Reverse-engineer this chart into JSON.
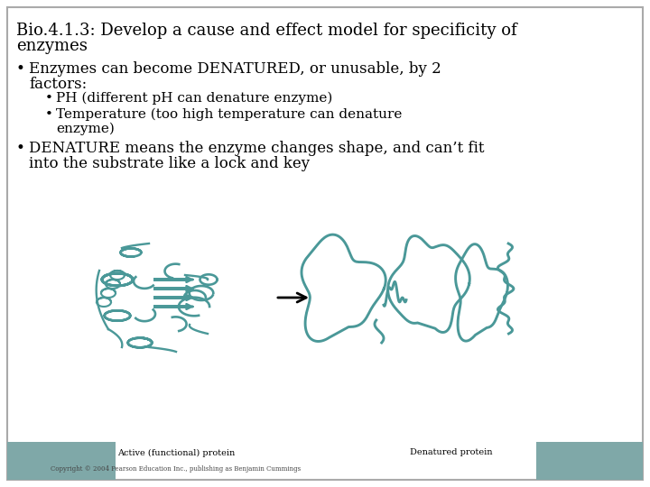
{
  "title_line1": "Bio.4.1.3: Develop a cause and effect model for specificity of",
  "title_line2": "enzymes",
  "title_fontsize": 13,
  "text_fontsize": 12,
  "sub_fontsize": 11,
  "background_color": "#ffffff",
  "border_color": "#aaaaaa",
  "text_color": "#000000",
  "footer_left": "Active (functional) protein",
  "footer_right": "Denatured protein",
  "footer_copyright": "Copyright © 2004 Pearson Education Inc., publishing as Benjamin Cummings",
  "footer_bg_color": "#7fa8a8",
  "footer_fontsize": 7,
  "teal_color": "#4a9898",
  "teal_fill": "#b0d8d8",
  "arrow_color": "#111111"
}
